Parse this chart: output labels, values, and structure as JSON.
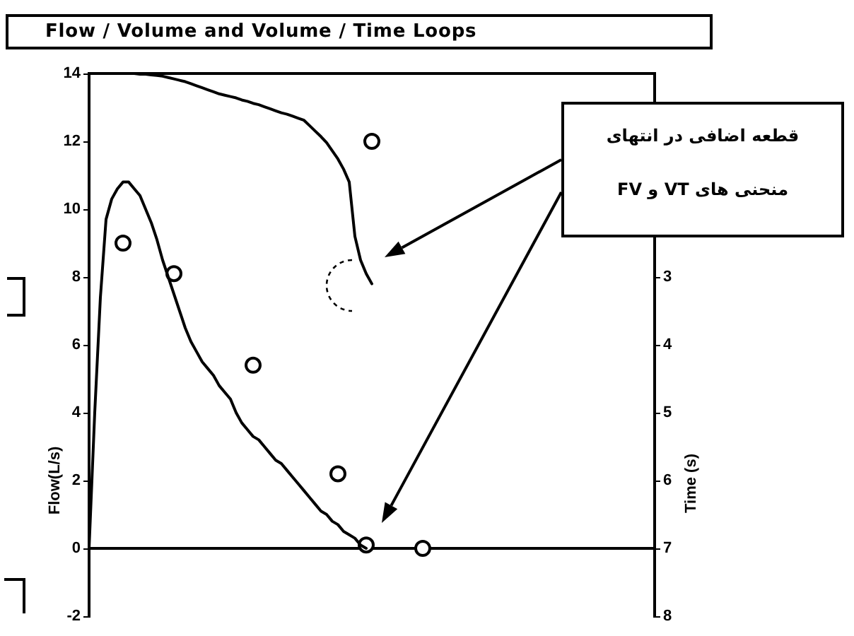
{
  "chart_data": {
    "type": "line",
    "title": "Flow / Volume and Volume / Time Loops",
    "ylabel": "Flow(L/s)",
    "y2label": "Time (s)",
    "annotations": [
      "قطعه اضافی در انتهای منحنی های VT و FV"
    ],
    "categories": [
      null,
      null,
      null,
      null,
      null,
      null,
      null,
      null,
      null,
      null,
      null,
      null,
      null,
      null,
      null,
      null,
      null,
      null,
      null,
      null,
      null,
      null,
      null,
      null,
      null,
      null,
      null,
      null,
      null,
      null,
      null,
      null,
      null,
      null,
      null,
      null,
      null,
      null,
      null,
      null,
      null,
      null,
      null,
      null,
      null,
      null,
      null,
      null,
      null,
      null,
      null,
      null,
      null,
      null,
      null,
      null,
      null,
      null,
      null,
      null,
      null,
      null,
      null,
      null,
      null,
      null,
      null,
      null,
      null,
      null,
      null,
      null,
      null,
      null,
      null,
      null,
      null,
      null,
      null,
      null,
      null,
      null,
      null,
      null,
      null,
      null,
      null,
      null,
      null,
      null,
      null,
      null,
      null,
      null,
      null,
      null,
      null,
      null,
      null,
      null,
      null
    ],
    "series": [
      {
        "type": "line",
        "color": "#000000",
        "values": [
          0,
          4.0,
          7.4,
          9.7,
          10.3,
          10.6,
          10.8,
          10.8,
          10.6,
          10.4,
          10.0,
          9.6,
          9.1,
          8.5,
          8.0,
          7.5,
          7.0,
          6.5,
          6.1,
          5.8,
          5.5,
          5.3,
          5.1,
          4.8,
          4.6,
          4.4,
          4.0,
          3.7,
          3.5,
          3.3,
          3.2,
          3.0,
          2.8,
          2.6,
          2.5,
          2.3,
          2.1,
          1.9,
          1.7,
          1.5,
          1.3,
          1.1,
          1.0,
          0.8,
          0.7,
          0.5,
          0.4,
          0.3,
          0.1,
          0,
          null,
          null,
          null,
          null,
          null,
          null,
          null,
          null,
          null,
          null,
          null,
          null,
          null,
          null,
          null,
          null,
          null,
          null,
          null,
          null,
          null,
          null,
          null,
          null,
          null,
          null,
          null,
          null,
          null,
          null,
          null,
          null,
          null,
          null,
          null,
          null,
          null,
          null,
          null,
          null,
          null,
          null,
          null,
          null,
          null,
          null,
          null,
          null,
          null,
          null,
          null
        ]
      },
      {
        "type": "line",
        "axis": "y2",
        "color": "#000000",
        "values": [
          0,
          0,
          0,
          0,
          0,
          0,
          0,
          0,
          0,
          0.01,
          0.01,
          0.02,
          0.03,
          0.04,
          0.06,
          0.08,
          0.1,
          0.12,
          0.15,
          0.18,
          0.21,
          0.24,
          0.27,
          0.3,
          0.32,
          0.34,
          0.36,
          0.39,
          0.41,
          0.44,
          0.46,
          0.49,
          0.52,
          0.55,
          0.58,
          0.6,
          0.63,
          0.66,
          0.69,
          0.77,
          0.85,
          0.93,
          1.02,
          1.14,
          1.26,
          1.41,
          1.6,
          2.4,
          2.75,
          2.95,
          3.1,
          null,
          null,
          null,
          null,
          null,
          null,
          null,
          null,
          null,
          null,
          null,
          null,
          null,
          null,
          null,
          null,
          null,
          null,
          null,
          null,
          null,
          null,
          null,
          null,
          null,
          null,
          null,
          null,
          null,
          null,
          null,
          null,
          null,
          null,
          null,
          null,
          null,
          null,
          null,
          null,
          null,
          null,
          null,
          null,
          null,
          null,
          null,
          null,
          null,
          null
        ]
      },
      {
        "type": "scatter",
        "color": "#000000",
        "marker": "circle",
        "values": [
          null,
          null,
          null,
          null,
          null,
          null,
          9.0,
          null,
          null,
          null,
          null,
          null,
          null,
          null,
          null,
          8.1,
          null,
          null,
          null,
          null,
          null,
          null,
          null,
          null,
          null,
          null,
          null,
          null,
          null,
          5.4,
          null,
          null,
          null,
          null,
          null,
          null,
          null,
          null,
          null,
          null,
          null,
          null,
          null,
          null,
          2.2,
          null,
          null,
          null,
          null,
          0.1,
          null,
          null,
          null,
          null,
          null,
          null,
          null,
          null,
          null,
          0,
          null,
          null,
          null,
          null,
          null,
          null,
          null,
          null,
          null,
          null,
          null,
          null,
          null,
          null,
          null,
          null,
          null,
          null,
          null,
          null,
          null,
          null,
          null,
          null,
          null,
          null,
          null,
          null,
          null,
          null,
          null,
          null,
          null,
          null,
          null,
          null,
          null,
          null,
          null,
          null,
          null
        ]
      },
      {
        "type": "scatter",
        "axis": "y2",
        "color": "#000000",
        "marker": "circle",
        "values": [
          null,
          null,
          null,
          null,
          null,
          null,
          null,
          null,
          null,
          null,
          null,
          null,
          null,
          null,
          null,
          null,
          null,
          null,
          null,
          null,
          null,
          null,
          null,
          null,
          null,
          null,
          null,
          null,
          null,
          null,
          null,
          null,
          null,
          null,
          null,
          null,
          null,
          null,
          null,
          null,
          null,
          null,
          null,
          null,
          null,
          null,
          null,
          null,
          null,
          null,
          1.0,
          null,
          null,
          null,
          null,
          null,
          null,
          null,
          null,
          null,
          null,
          null,
          null,
          null,
          null,
          null,
          null,
          null,
          null,
          null,
          null,
          null,
          null,
          null,
          null,
          null,
          null,
          null,
          null,
          null,
          null,
          null,
          null,
          null,
          null,
          null,
          null,
          null,
          null,
          null,
          null,
          null,
          null,
          null,
          null,
          null,
          null,
          null,
          null,
          null,
          null
        ]
      }
    ],
    "ylim": [
      -2,
      14
    ],
    "yticks": [
      -2,
      0,
      2,
      4,
      6,
      8,
      10,
      12,
      14
    ],
    "y2lim": [
      8,
      0
    ],
    "y2ticks": [
      3,
      4,
      5,
      6,
      7,
      8
    ]
  }
}
